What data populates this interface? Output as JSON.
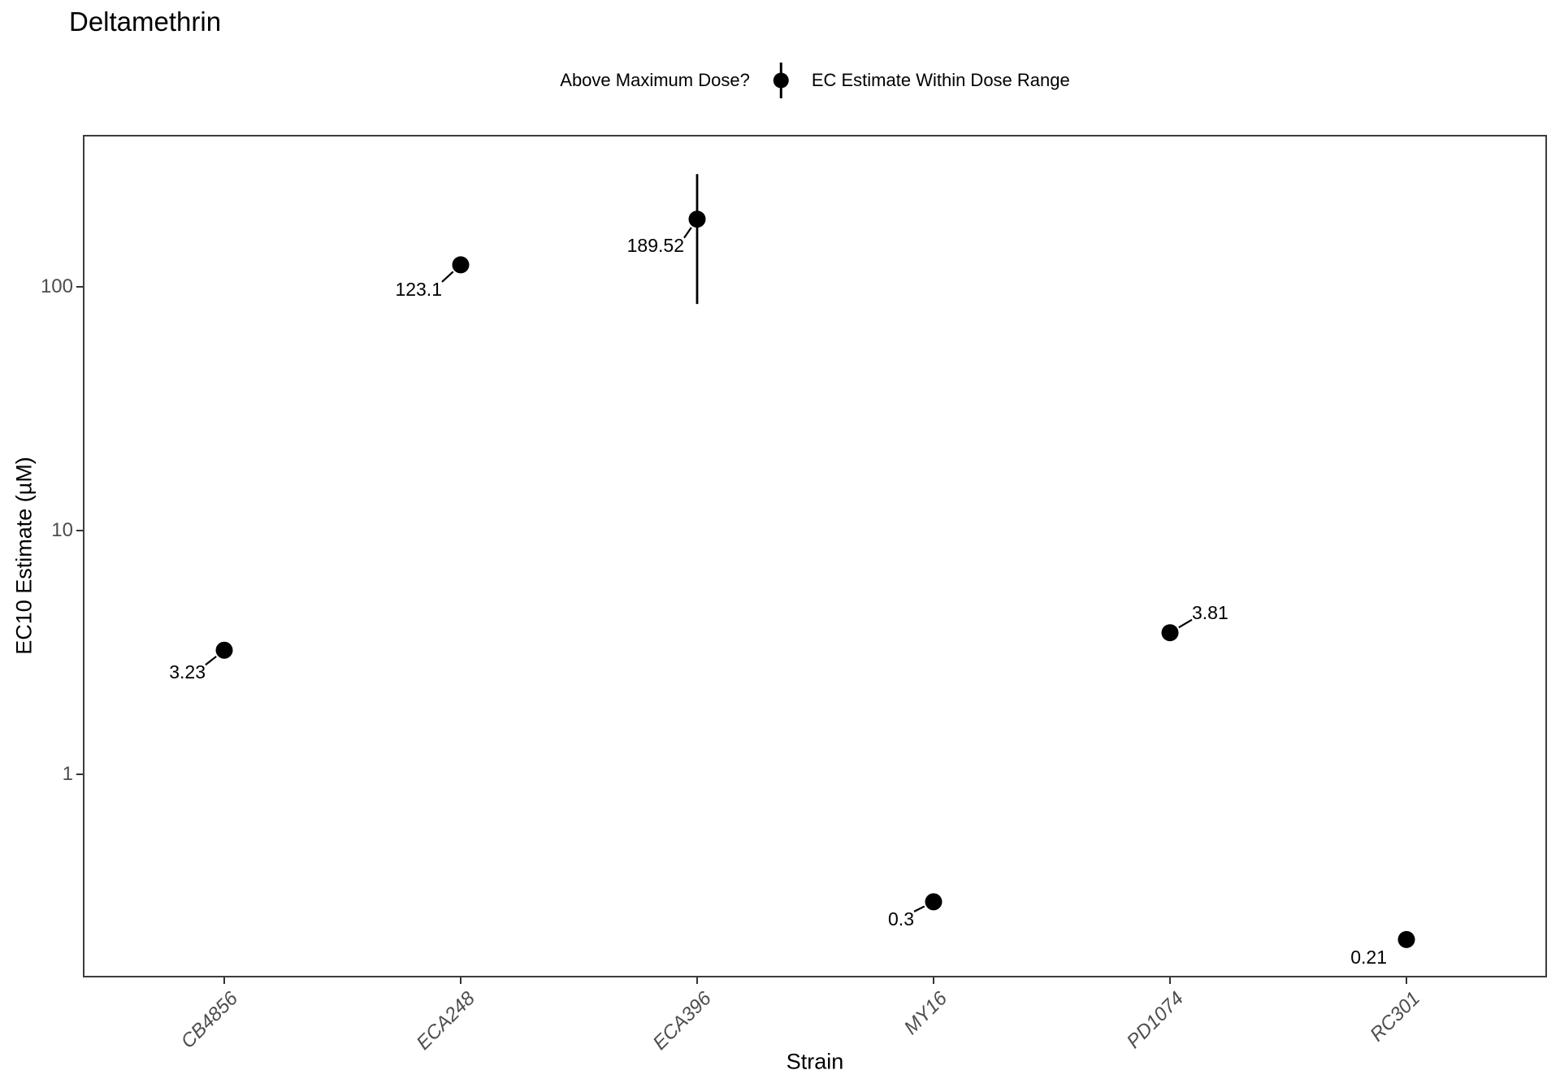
{
  "title": "Deltamethrin",
  "legend": {
    "title": "Above Maximum Dose?",
    "items": [
      {
        "label": "EC Estimate Within Dose Range",
        "symbol": "pointrange-icon",
        "color": "#000000"
      }
    ]
  },
  "axes": {
    "x_title": "Strain",
    "y_title": "EC10 Estimate (µM)",
    "y_tick_labels": [
      "1",
      "10",
      "100"
    ]
  },
  "chart_data": {
    "type": "scatter",
    "title": "Deltamethrin",
    "xlabel": "Strain",
    "ylabel": "EC10 Estimate (µM)",
    "y_scale": "log10",
    "y_ticks": [
      1,
      10,
      100
    ],
    "ylim": [
      0.15,
      420
    ],
    "grid": false,
    "legend_position": "top",
    "categories": [
      "CB4856",
      "ECA248",
      "ECA396",
      "MY16",
      "PD1074",
      "RC301"
    ],
    "series": [
      {
        "name": "EC Estimate Within Dose Range",
        "points": [
          {
            "strain": "CB4856",
            "value": 3.23,
            "label": "3.23",
            "ymin": null,
            "ymax": null,
            "label_dx": -23,
            "label_dy": 27,
            "label_align": "right",
            "leader": true
          },
          {
            "strain": "ECA248",
            "value": 123.1,
            "label": "123.1",
            "ymin": null,
            "ymax": null,
            "label_dx": -23,
            "label_dy": 30,
            "label_align": "right",
            "leader": true
          },
          {
            "strain": "ECA396",
            "value": 189.52,
            "label": "189.52",
            "ymin": 85,
            "ymax": 290,
            "label_dx": -16,
            "label_dy": 32,
            "label_align": "right",
            "leader": true
          },
          {
            "strain": "MY16",
            "value": 0.3,
            "label": "0.3",
            "ymin": null,
            "ymax": null,
            "label_dx": -24,
            "label_dy": 21,
            "label_align": "right",
            "leader": true
          },
          {
            "strain": "PD1074",
            "value": 3.81,
            "label": "3.81",
            "ymin": null,
            "ymax": null,
            "label_dx": 27,
            "label_dy": -25,
            "label_align": "left",
            "leader": true
          },
          {
            "strain": "RC301",
            "value": 0.21,
            "label": "0.21",
            "ymin": null,
            "ymax": null,
            "label_dx": -24,
            "label_dy": 22,
            "label_align": "right",
            "leader": false
          }
        ]
      }
    ]
  },
  "colors": {
    "point": "#000000",
    "axis_text": "#4d4d4d",
    "panel_border": "#3d3d3d",
    "tick": "#333333"
  }
}
